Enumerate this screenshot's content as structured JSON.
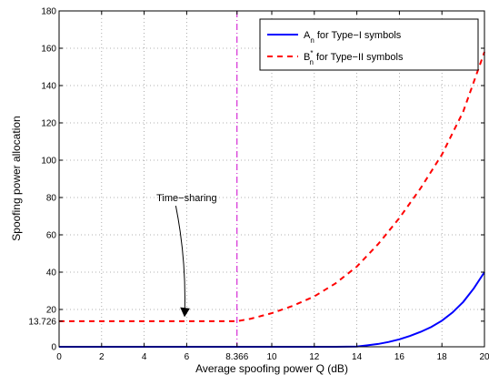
{
  "chart_data": {
    "type": "line",
    "xlabel": "Average spoofing power Q (dB)",
    "ylabel": "Spoofing power allocation",
    "xlim": [
      0,
      20
    ],
    "ylim": [
      0,
      180
    ],
    "x_ticks": [
      "0",
      "2",
      "4",
      "6",
      "8.366",
      "10",
      "12",
      "14",
      "16",
      "18",
      "20"
    ],
    "x_tick_values": [
      0,
      2,
      4,
      6,
      8.366,
      10,
      12,
      14,
      16,
      18,
      20
    ],
    "y_ticks": [
      "0",
      "13.726",
      "20",
      "40",
      "60",
      "80",
      "100",
      "120",
      "140",
      "160",
      "180"
    ],
    "y_tick_values": [
      0,
      13.726,
      20,
      40,
      60,
      80,
      100,
      120,
      140,
      160,
      180
    ],
    "grid": true,
    "legend_position": "top-right",
    "series": [
      {
        "name_main": "A",
        "name_sub": "n",
        "name_rest": " for Type−I symbols",
        "color": "#0000ff",
        "dash": "solid",
        "x": [
          0,
          8.366,
          12,
          13,
          14,
          14.5,
          15,
          15.5,
          16,
          16.5,
          17,
          17.5,
          18,
          18.5,
          19,
          19.5,
          20
        ],
        "y": [
          0,
          0,
          0,
          0,
          0.1,
          0.8,
          1.5,
          2.6,
          4,
          5.8,
          8,
          10.6,
          14,
          18.4,
          24,
          31.3,
          40
        ]
      },
      {
        "name_main": "B",
        "name_sup": "*",
        "name_sub": "n",
        "name_rest": " for Type−II symbols",
        "color": "#ff0000",
        "dash": "dashed",
        "x": [
          0,
          8.366,
          9,
          10,
          11,
          12,
          13,
          14,
          15,
          16,
          17,
          18,
          19,
          20
        ],
        "y": [
          13.726,
          13.726,
          15,
          18,
          22,
          27,
          34,
          43,
          55,
          69,
          85,
          103,
          126,
          158
        ]
      }
    ],
    "vertical_line": {
      "x": 8.366,
      "color": "#cc00cc",
      "style": "dash-dot"
    },
    "annotation": {
      "text": "Time−sharing",
      "x": 6,
      "y": 78,
      "arrow_to_x": 5.9,
      "arrow_to_y": 15
    }
  }
}
